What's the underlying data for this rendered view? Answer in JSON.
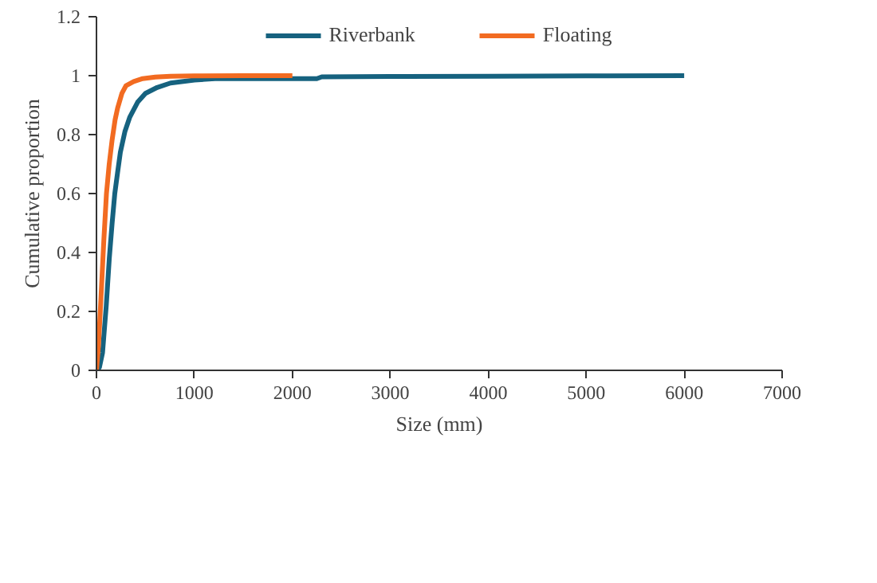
{
  "chart_data": {
    "type": "line",
    "xlabel": "Size (mm)",
    "ylabel": "Cumulative proportion",
    "xlim": [
      0,
      7000
    ],
    "xticks": [
      0,
      1000,
      2000,
      3000,
      4000,
      5000,
      6000,
      7000
    ],
    "ylim": [
      0,
      1.2
    ],
    "yticks": [
      0,
      0.2,
      0.4,
      0.6,
      0.8,
      1,
      1.2
    ],
    "grid": false,
    "legend": "top",
    "series": [
      {
        "name": "Riverbank",
        "color": "#16627f",
        "x": [
          0,
          30,
          62,
          100,
          131,
          160,
          187,
          215,
          244,
          290,
          341,
          420,
          500,
          620,
          756,
          1000,
          1210,
          1600,
          2000,
          2250,
          2300,
          3000,
          4000,
          5000,
          6000
        ],
        "values": [
          0,
          0.01,
          0.06,
          0.22,
          0.38,
          0.5,
          0.6,
          0.67,
          0.74,
          0.81,
          0.86,
          0.91,
          0.94,
          0.96,
          0.975,
          0.985,
          0.99,
          0.99,
          0.99,
          0.99,
          0.996,
          0.997,
          0.998,
          0.999,
          1
        ]
      },
      {
        "name": "Floating",
        "color": "#f26b21",
        "x": [
          0,
          20,
          45,
          75,
          102,
          130,
          159,
          190,
          216,
          260,
          301,
          380,
          472,
          600,
          756,
          1000,
          1500,
          2000
        ],
        "values": [
          0,
          0.08,
          0.24,
          0.44,
          0.6,
          0.7,
          0.78,
          0.85,
          0.89,
          0.94,
          0.966,
          0.98,
          0.99,
          0.995,
          0.998,
          0.999,
          1,
          1
        ]
      }
    ]
  }
}
